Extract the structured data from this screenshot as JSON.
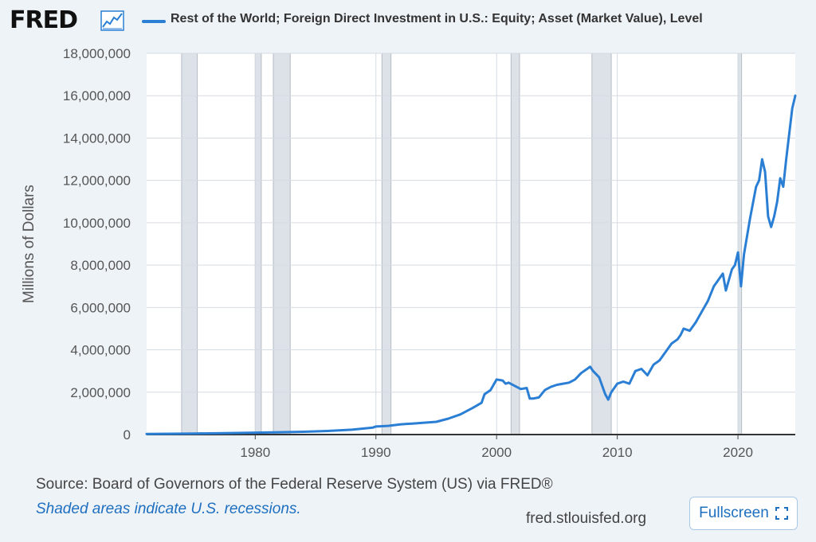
{
  "header": {
    "logo_text": "FRED",
    "logo_icon": "line-graph-icon",
    "series_label": "Rest of the World; Foreign Direct Investment in U.S.: Equity; Asset (Market Value), Level"
  },
  "colors": {
    "line": "#2a7fd4",
    "background": "#eef3f8",
    "plot_background": "#ffffff",
    "recession": "#dde2e8",
    "grid": "#d5dbe2"
  },
  "footer": {
    "source": "Source: Board of Governors of the Federal Reserve System (US) via FRED®",
    "note": "Shaded areas indicate U.S. recessions.",
    "site": "fred.stlouisfed.org",
    "fullscreen_label": "Fullscreen",
    "fullscreen_icon": "expand-corners-icon"
  },
  "chart_data": {
    "type": "line",
    "title": "",
    "xlabel": "",
    "ylabel": "Millions of Dollars",
    "xlim": [
      1971.0,
      2024.75
    ],
    "ylim": [
      0,
      18000000
    ],
    "x_ticks": [
      1980,
      1990,
      2000,
      2010,
      2020
    ],
    "x_tick_labels": [
      "1980",
      "1990",
      "2000",
      "2010",
      "2020"
    ],
    "y_ticks": [
      0,
      2000000,
      4000000,
      6000000,
      8000000,
      10000000,
      12000000,
      14000000,
      16000000,
      18000000
    ],
    "y_tick_labels": [
      "0",
      "2,000,000",
      "4,000,000",
      "6,000,000",
      "8,000,000",
      "10,000,000",
      "12,000,000",
      "14,000,000",
      "16,000,000",
      "18,000,000"
    ],
    "grid": true,
    "legend_position": "top",
    "recessions": [
      [
        1973.9,
        1975.2
      ],
      [
        1980.0,
        1980.5
      ],
      [
        1981.5,
        1982.9
      ],
      [
        1990.5,
        1991.25
      ],
      [
        2001.2,
        2001.9
      ],
      [
        2007.9,
        2009.5
      ],
      [
        2020.0,
        2020.3
      ]
    ],
    "series": [
      {
        "name": "Rest of the World; Foreign Direct Investment in U.S.: Equity; Asset (Market Value), Level",
        "x": [
          1971.0,
          1975.0,
          1978.0,
          1980.0,
          1982.0,
          1984.0,
          1986.0,
          1988.0,
          1989.75,
          1990.0,
          1991.0,
          1992.0,
          1993.0,
          1994.0,
          1995.0,
          1996.0,
          1997.0,
          1998.0,
          1998.75,
          1999.0,
          1999.5,
          2000.0,
          2000.5,
          2000.75,
          2001.0,
          2001.5,
          2002.0,
          2002.5,
          2002.75,
          2003.0,
          2003.5,
          2004.0,
          2004.5,
          2005.0,
          2005.5,
          2006.0,
          2006.5,
          2007.0,
          2007.5,
          2007.75,
          2008.0,
          2008.5,
          2008.75,
          2009.0,
          2009.25,
          2009.5,
          2010.0,
          2010.5,
          2011.0,
          2011.5,
          2012.0,
          2012.5,
          2013.0,
          2013.5,
          2014.0,
          2014.5,
          2015.0,
          2015.25,
          2015.5,
          2016.0,
          2016.5,
          2017.0,
          2017.5,
          2018.0,
          2018.5,
          2018.75,
          2019.0,
          2019.5,
          2019.75,
          2020.0,
          2020.25,
          2020.5,
          2021.0,
          2021.5,
          2021.75,
          2022.0,
          2022.25,
          2022.5,
          2022.75,
          2023.0,
          2023.25,
          2023.5,
          2023.75,
          2024.0,
          2024.25,
          2024.5,
          2024.75
        ],
        "y": [
          30000,
          50000,
          70000,
          90000,
          110000,
          130000,
          170000,
          230000,
          330000,
          380000,
          410000,
          480000,
          520000,
          560000,
          600000,
          750000,
          950000,
          1250000,
          1500000,
          1900000,
          2100000,
          2600000,
          2550000,
          2400000,
          2450000,
          2300000,
          2150000,
          2200000,
          1700000,
          1700000,
          1750000,
          2100000,
          2250000,
          2350000,
          2400000,
          2450000,
          2600000,
          2900000,
          3100000,
          3200000,
          3000000,
          2700000,
          2300000,
          1900000,
          1650000,
          2000000,
          2400000,
          2500000,
          2400000,
          3000000,
          3100000,
          2800000,
          3300000,
          3500000,
          3900000,
          4300000,
          4500000,
          4700000,
          5000000,
          4900000,
          5300000,
          5800000,
          6300000,
          7000000,
          7400000,
          7600000,
          6800000,
          7800000,
          8000000,
          8600000,
          7000000,
          8500000,
          10200000,
          11700000,
          12000000,
          13000000,
          12400000,
          10300000,
          9800000,
          10300000,
          11000000,
          12100000,
          11700000,
          13000000,
          14200000,
          15400000,
          16000000
        ]
      }
    ]
  }
}
